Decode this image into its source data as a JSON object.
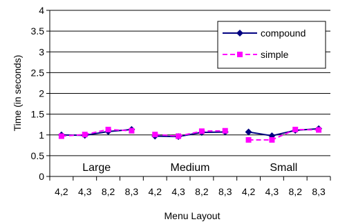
{
  "chart_data": {
    "type": "line",
    "title": "",
    "xlabel": "Menu Layout",
    "ylabel": "Time (in seconds)",
    "ylim": [
      0,
      4
    ],
    "yticks": [
      "0",
      "0.5",
      "1",
      "1.5",
      "2",
      "2.5",
      "3",
      "3.5",
      "4"
    ],
    "grid": true,
    "legend_position": "top-right",
    "categories": [
      "4,2",
      "4,3",
      "8,2",
      "8,3",
      "4,2",
      "4,3",
      "8,2",
      "8,3",
      "4,2",
      "4,3",
      "8,2",
      "8,3"
    ],
    "groups": [
      {
        "label": "Large",
        "start": 0,
        "end": 3
      },
      {
        "label": "Medium",
        "start": 4,
        "end": 7
      },
      {
        "label": "Small",
        "start": 8,
        "end": 11
      }
    ],
    "series": [
      {
        "name": "compound",
        "color": "#000080",
        "marker": "diamond",
        "line_style": "solid",
        "values": [
          1.0,
          0.99,
          1.08,
          1.13,
          0.97,
          0.96,
          1.06,
          1.07,
          1.07,
          0.98,
          1.11,
          1.15
        ]
      },
      {
        "name": "simple",
        "color": "#FF00FF",
        "marker": "square",
        "line_style": "dashed",
        "values": [
          0.97,
          1.01,
          1.13,
          1.1,
          1.01,
          0.97,
          1.09,
          1.1,
          0.88,
          0.88,
          1.13,
          1.12
        ]
      }
    ]
  }
}
